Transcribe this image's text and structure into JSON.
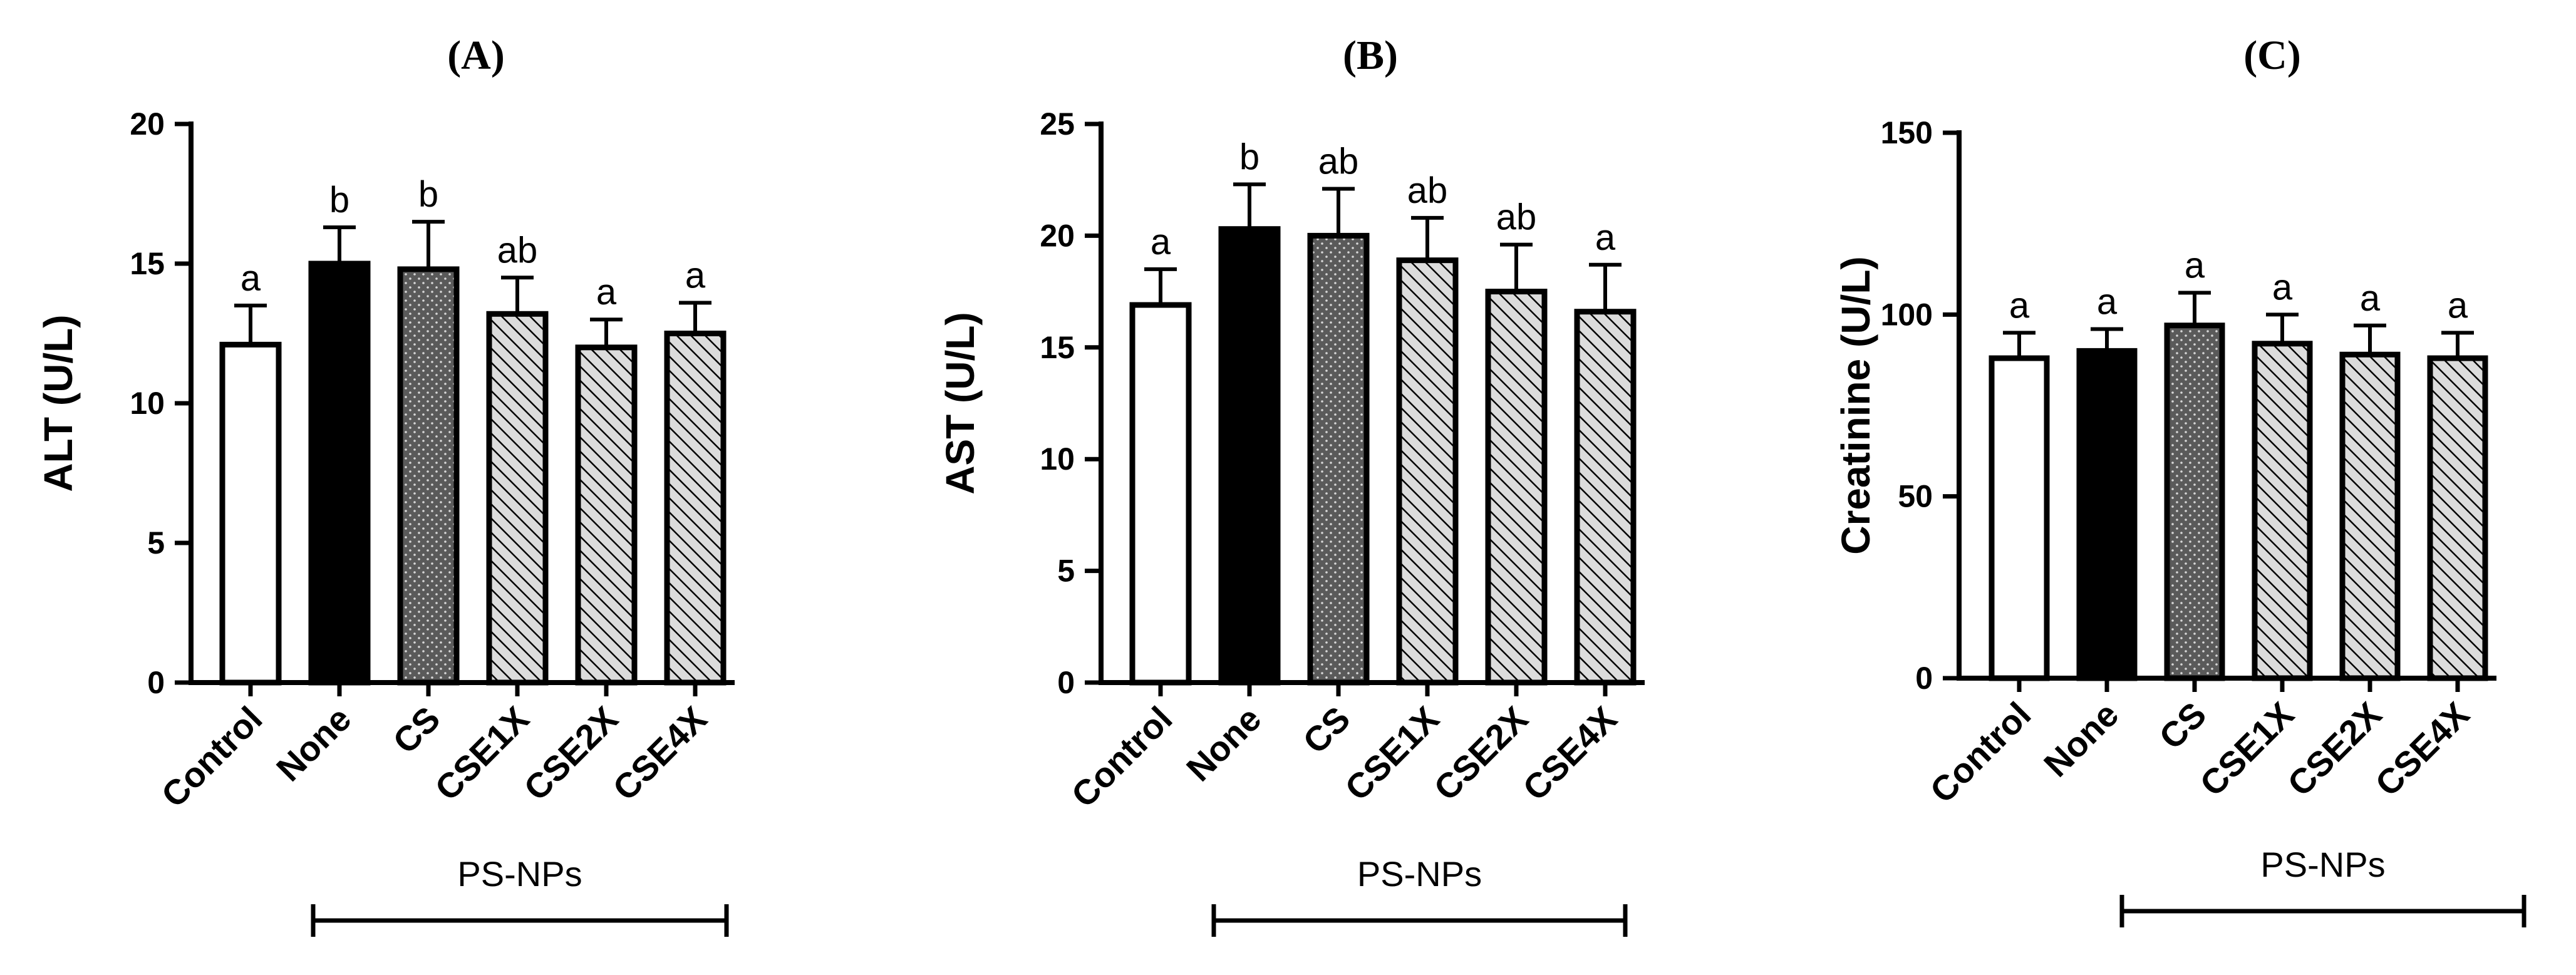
{
  "chart_data": [
    {
      "type": "bar",
      "panel_label": "(A)",
      "ylabel": "ALT (U/L)",
      "ylim": [
        0,
        20
      ],
      "yticks": [
        0,
        5,
        10,
        15,
        20
      ],
      "categories": [
        "Control",
        "None",
        "CS",
        "CSE1X",
        "CSE2X",
        "CSE4X"
      ],
      "values": [
        12.1,
        15.0,
        14.8,
        13.2,
        12.0,
        12.5
      ],
      "errors": [
        1.4,
        1.3,
        1.7,
        1.3,
        1.0,
        1.1
      ],
      "significance": [
        "a",
        "b",
        "b",
        "ab",
        "a",
        "a"
      ],
      "group_bracket": {
        "label": "PS-NPs",
        "from": "None",
        "to": "CSE4X"
      }
    },
    {
      "type": "bar",
      "panel_label": "(B)",
      "ylabel": "AST (U/L)",
      "ylim": [
        0,
        25
      ],
      "yticks": [
        0,
        5,
        10,
        15,
        20,
        25
      ],
      "categories": [
        "Control",
        "None",
        "CS",
        "CSE1X",
        "CSE2X",
        "CSE4X"
      ],
      "values": [
        16.9,
        20.3,
        20.0,
        18.9,
        17.5,
        16.6
      ],
      "errors": [
        1.6,
        2.0,
        2.1,
        1.9,
        2.1,
        2.1
      ],
      "significance": [
        "a",
        "b",
        "ab",
        "ab",
        "ab",
        "a"
      ],
      "group_bracket": {
        "label": "PS-NPs",
        "from": "None",
        "to": "CSE4X"
      }
    },
    {
      "type": "bar",
      "panel_label": "(C)",
      "ylabel": "Creatinine (U/L)",
      "ylim": [
        0,
        150
      ],
      "yticks": [
        0,
        50,
        100,
        150
      ],
      "categories": [
        "Control",
        "None",
        "CS",
        "CSE1X",
        "CSE2X",
        "CSE4X"
      ],
      "values": [
        88,
        90,
        97,
        92,
        89,
        88
      ],
      "errors": [
        7,
        6,
        9,
        8,
        8,
        7
      ],
      "significance": [
        "a",
        "a",
        "a",
        "a",
        "a",
        "a"
      ],
      "group_bracket": {
        "label": "PS-NPs",
        "from": "None",
        "to": "CSE4X"
      }
    }
  ],
  "bar_styles": [
    {
      "fill": "#ffffff",
      "pattern": "none"
    },
    {
      "fill": "#000000",
      "pattern": "none"
    },
    {
      "fill": "#5a5a5a",
      "pattern": "dots"
    },
    {
      "fill": "#d6d6d6",
      "pattern": "hatch"
    },
    {
      "fill": "#d6d6d6",
      "pattern": "hatch"
    },
    {
      "fill": "#d6d6d6",
      "pattern": "hatch"
    }
  ],
  "colors": {
    "axis": "#000000",
    "background": "#ffffff"
  }
}
